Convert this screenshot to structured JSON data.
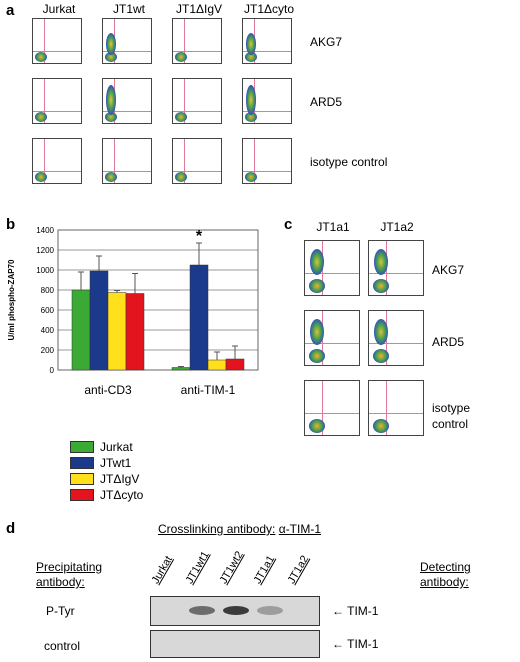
{
  "panel_a": {
    "letter": "a",
    "columns": [
      "Jurkat",
      "JT1wt",
      "JT1ΔIgV",
      "JT1Δcyto"
    ],
    "rows": [
      "AKG7",
      "ARD5",
      "isotype control"
    ]
  },
  "panel_b": {
    "letter": "b",
    "chart_data": {
      "type": "bar",
      "categories": [
        "anti-CD3",
        "anti-TIM-1"
      ],
      "ylabel": "U/ml phospho-ZAP70",
      "ylim": [
        0,
        1400
      ],
      "yticks": [
        0,
        200,
        400,
        600,
        800,
        1000,
        1200,
        1400
      ],
      "series": [
        {
          "name": "Jurkat",
          "color": "#3aaa35",
          "values": [
            800,
            25
          ],
          "errors": [
            180,
            10
          ]
        },
        {
          "name": "JTwt1",
          "color": "#1c3a8c",
          "values": [
            990,
            1050
          ],
          "errors": [
            150,
            220
          ]
        },
        {
          "name": "JTΔIgV",
          "color": "#ffe01a",
          "values": [
            775,
            100
          ],
          "errors": [
            20,
            80
          ]
        },
        {
          "name": "JTΔcyto",
          "color": "#e3141e",
          "values": [
            765,
            110
          ],
          "errors": [
            200,
            130
          ]
        }
      ],
      "annotation": "*",
      "grid": true
    }
  },
  "panel_c": {
    "letter": "c",
    "columns": [
      "JT1a1",
      "JT1a2"
    ],
    "rows": [
      "AKG7",
      "ARD5",
      "isotype control"
    ],
    "row_lines": [
      [
        "AKG7"
      ],
      [
        "ARD5"
      ],
      [
        "isotype",
        "control"
      ]
    ]
  },
  "panel_d": {
    "letter": "d",
    "title": "Crosslinking antibody:",
    "title_ab": "α-TIM-1",
    "left_header": [
      "Precipitating",
      "antibody:"
    ],
    "right_header": [
      "Detecting",
      "antibody:"
    ],
    "lanes": [
      "Jurkat",
      "JT1wt1",
      "JT1wt2",
      "JT1a1",
      "JT1a2"
    ],
    "rows": [
      {
        "label": "P-Tyr",
        "detect": "TIM-1",
        "bands": [
          0,
          0.55,
          0.8,
          0.3,
          0
        ]
      },
      {
        "label": "control",
        "detect": "TIM-1",
        "bands": [
          0,
          0,
          0,
          0,
          0
        ]
      }
    ]
  }
}
